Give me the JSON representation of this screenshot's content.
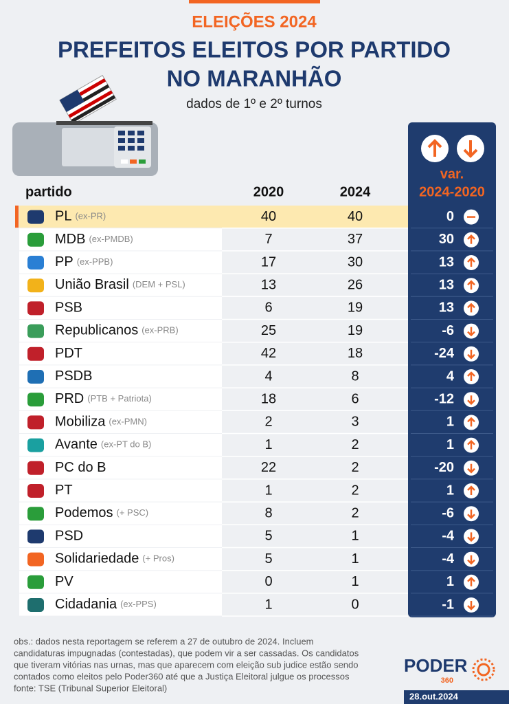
{
  "header": {
    "kicker": "ELEIÇÕES 2024",
    "title_line1": "PREFEITOS ELEITOS POR PARTIDO",
    "title_line2": "NO MARANHÃO",
    "subtitle": "dados de 1º e 2º turnos"
  },
  "table": {
    "columns": [
      "partido",
      "2020",
      "2024",
      "var.",
      "2024-2020"
    ],
    "rows": [
      {
        "name": "PL",
        "note": "(ex-PR)",
        "v2020": 40,
        "v2024": 40,
        "var": 0
      },
      {
        "name": "MDB",
        "note": "(ex-PMDB)",
        "v2020": 7,
        "v2024": 37,
        "var": 30
      },
      {
        "name": "PP",
        "note": "(ex-PPB)",
        "v2020": 17,
        "v2024": 30,
        "var": 13
      },
      {
        "name": "União Brasil",
        "note": "(DEM + PSL)",
        "v2020": 13,
        "v2024": 26,
        "var": 13
      },
      {
        "name": "PSB",
        "note": null,
        "v2020": 6,
        "v2024": 19,
        "var": 13
      },
      {
        "name": "Republicanos",
        "note": "(ex-PRB)",
        "v2020": 25,
        "v2024": 19,
        "var": -6
      },
      {
        "name": "PDT",
        "note": null,
        "v2020": 42,
        "v2024": 18,
        "var": -24
      },
      {
        "name": "PSDB",
        "note": null,
        "v2020": 4,
        "v2024": 8,
        "var": 4
      },
      {
        "name": "PRD",
        "note": "(PTB + Patriota)",
        "v2020": 18,
        "v2024": 6,
        "var": -12
      },
      {
        "name": "Mobiliza",
        "note": "(ex-PMN)",
        "v2020": 2,
        "v2024": 3,
        "var": 1
      },
      {
        "name": "Avante",
        "note": "(ex-PT do B)",
        "v2020": 1,
        "v2024": 2,
        "var": 1
      },
      {
        "name": "PC do B",
        "note": null,
        "v2020": 22,
        "v2024": 2,
        "var": -20
      },
      {
        "name": "PT",
        "note": null,
        "v2020": 1,
        "v2024": 2,
        "var": 1
      },
      {
        "name": "Podemos",
        "note": "(+ PSC)",
        "v2020": 8,
        "v2024": 2,
        "var": -6
      },
      {
        "name": "PSD",
        "note": null,
        "v2020": 5,
        "v2024": 1,
        "var": -4
      },
      {
        "name": "Solidariedade",
        "note": "(+ Pros)",
        "v2020": 5,
        "v2024": 1,
        "var": -4
      },
      {
        "name": "PV",
        "note": null,
        "v2020": 0,
        "v2024": 1,
        "var": 1
      },
      {
        "name": "Cidadania",
        "note": "(ex-PPS)",
        "v2020": 1,
        "v2024": 0,
        "var": -1
      }
    ]
  },
  "footer": {
    "notes": [
      "obs.: dados nesta reportagem se referem a 27 de outubro de 2024. Incluem",
      "candidaturas impugnadas (contestadas), que podem vir a ser cassadas. Os candidatos",
      "que tiveram vitórias nas urnas, mas que aparecem com eleição sub judice estão sendo",
      "contados como eleitos pelo Poder360 até que a Justiça Eleitoral julgue os processos",
      "fonte: TSE (Tribunal Superior Eleitoral)"
    ],
    "brand": "PODER",
    "brand_sub": "360",
    "date": "28.out.2024"
  }
}
